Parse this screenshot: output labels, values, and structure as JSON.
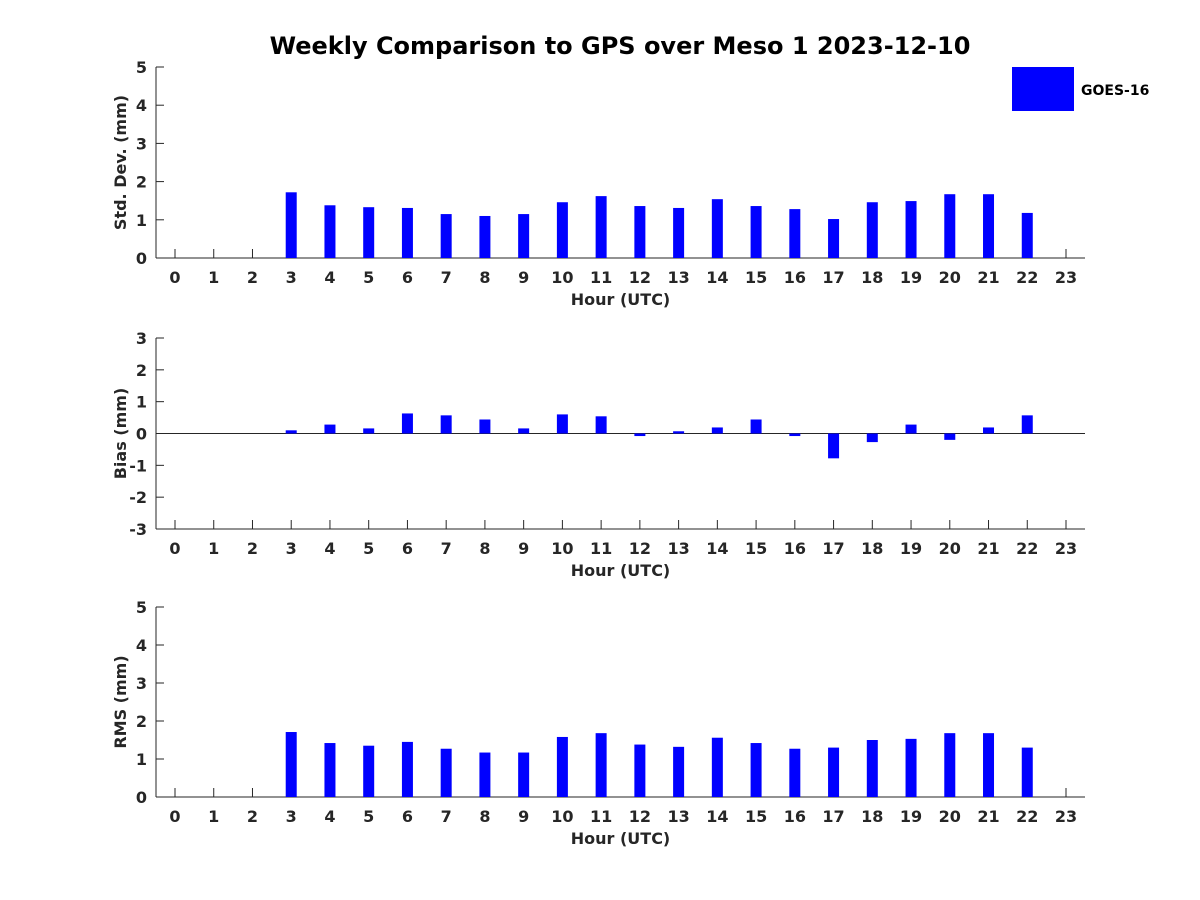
{
  "title": "Weekly Comparison to GPS over Meso 1 2023-12-10",
  "legend": {
    "label": "GOES-16",
    "color": "#0000ff",
    "placement": "top-right"
  },
  "chart_data": [
    {
      "type": "bar",
      "xlabel": "Hour (UTC)",
      "ylabel": "Std. Dev. (mm)",
      "ylim": [
        0,
        5
      ],
      "yticks": [
        "0",
        "1",
        "2",
        "3",
        "4",
        "5"
      ],
      "categories": [
        "0",
        "1",
        "2",
        "3",
        "4",
        "5",
        "6",
        "7",
        "8",
        "9",
        "10",
        "11",
        "12",
        "13",
        "14",
        "15",
        "16",
        "17",
        "18",
        "19",
        "20",
        "21",
        "22",
        "23"
      ],
      "series": [
        {
          "name": "GOES-16",
          "values": [
            null,
            null,
            null,
            1.72,
            1.38,
            1.33,
            1.31,
            1.15,
            1.1,
            1.15,
            1.46,
            1.62,
            1.36,
            1.31,
            1.54,
            1.36,
            1.28,
            1.02,
            1.46,
            1.49,
            1.67,
            1.67,
            1.18,
            null
          ]
        }
      ]
    },
    {
      "type": "bar",
      "xlabel": "Hour (UTC)",
      "ylabel": "Bias (mm)",
      "ylim": [
        -3,
        3
      ],
      "yticks": [
        "-3",
        "-2",
        "-1",
        "0",
        "1",
        "2",
        "3"
      ],
      "categories": [
        "0",
        "1",
        "2",
        "3",
        "4",
        "5",
        "6",
        "7",
        "8",
        "9",
        "10",
        "11",
        "12",
        "13",
        "14",
        "15",
        "16",
        "17",
        "18",
        "19",
        "20",
        "21",
        "22",
        "23"
      ],
      "series": [
        {
          "name": "GOES-16",
          "values": [
            null,
            null,
            null,
            0.1,
            0.28,
            0.16,
            0.63,
            0.57,
            0.44,
            0.16,
            0.6,
            0.54,
            -0.08,
            0.07,
            0.19,
            0.44,
            -0.08,
            -0.78,
            -0.27,
            0.28,
            -0.2,
            0.19,
            0.57,
            null
          ]
        }
      ]
    },
    {
      "type": "bar",
      "xlabel": "Hour (UTC)",
      "ylabel": "RMS (mm)",
      "ylim": [
        0,
        5
      ],
      "yticks": [
        "0",
        "1",
        "2",
        "3",
        "4",
        "5"
      ],
      "categories": [
        "0",
        "1",
        "2",
        "3",
        "4",
        "5",
        "6",
        "7",
        "8",
        "9",
        "10",
        "11",
        "12",
        "13",
        "14",
        "15",
        "16",
        "17",
        "18",
        "19",
        "20",
        "21",
        "22",
        "23"
      ],
      "series": [
        {
          "name": "GOES-16",
          "values": [
            null,
            null,
            null,
            1.71,
            1.42,
            1.35,
            1.45,
            1.27,
            1.17,
            1.17,
            1.58,
            1.68,
            1.38,
            1.32,
            1.56,
            1.42,
            1.27,
            1.3,
            1.5,
            1.53,
            1.68,
            1.68,
            1.3,
            null
          ]
        }
      ]
    }
  ]
}
